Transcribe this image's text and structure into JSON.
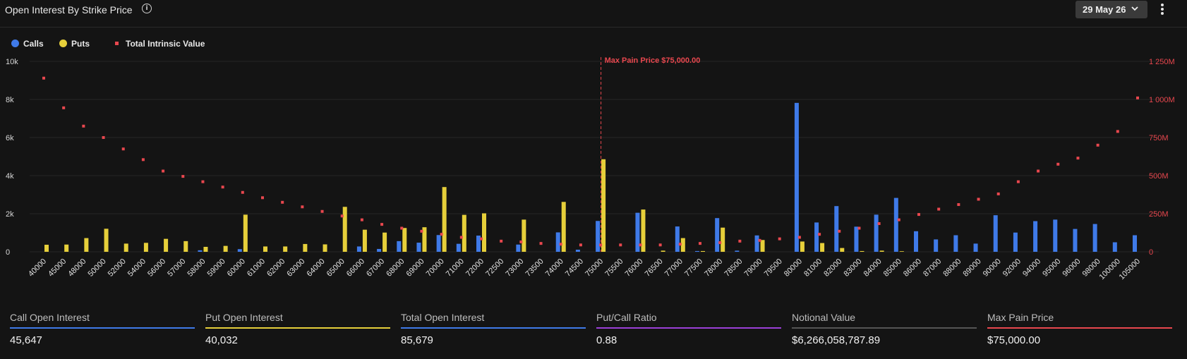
{
  "header": {
    "title": "Open Interest By Strike Price",
    "info_icon": "info-icon",
    "date_selector": {
      "selected": "29 May 26",
      "icon": "chevron-down-icon"
    },
    "menu_icon": "kebab-menu-icon"
  },
  "legend": [
    {
      "label": "Calls",
      "color": "#3f7ae8",
      "marker": "circle"
    },
    {
      "label": "Puts",
      "color": "#e6cf3a",
      "marker": "circle"
    },
    {
      "label": "Total Intrinsic Value",
      "color": "#e8474e",
      "marker": "square"
    }
  ],
  "chart_data": {
    "type": "bar",
    "categories": [
      "40000",
      "45000",
      "48000",
      "50000",
      "52000",
      "54000",
      "56000",
      "57000",
      "58000",
      "59000",
      "60000",
      "61000",
      "62000",
      "63000",
      "64000",
      "65000",
      "66000",
      "67000",
      "68000",
      "69000",
      "70000",
      "71000",
      "72000",
      "72500",
      "73000",
      "73500",
      "74000",
      "74500",
      "75000",
      "75500",
      "76000",
      "76500",
      "77000",
      "77500",
      "78000",
      "78500",
      "79000",
      "79500",
      "80000",
      "81000",
      "82000",
      "83000",
      "84000",
      "85000",
      "86000",
      "87000",
      "88000",
      "89000",
      "90000",
      "92000",
      "94000",
      "95000",
      "96000",
      "98000",
      "100000",
      "105000"
    ],
    "series": [
      {
        "name": "Calls",
        "axis": "left",
        "color": "#3f7ae8",
        "values": [
          0,
          0,
          0,
          0,
          0,
          0,
          0,
          0,
          80,
          0,
          140,
          0,
          0,
          0,
          0,
          0,
          280,
          150,
          560,
          480,
          880,
          420,
          850,
          0,
          380,
          0,
          1020,
          110,
          1620,
          0,
          2050,
          0,
          1330,
          40,
          1770,
          60,
          860,
          0,
          7820,
          1540,
          2400,
          1320,
          1950,
          2830,
          1080,
          650,
          870,
          430,
          1920,
          1010,
          1610,
          1690,
          1200,
          1460,
          500,
          870
        ]
      },
      {
        "name": "Puts",
        "axis": "left",
        "color": "#e6cf3a",
        "values": [
          370,
          380,
          720,
          1210,
          430,
          470,
          680,
          560,
          260,
          310,
          1950,
          280,
          280,
          410,
          390,
          2360,
          1160,
          1010,
          1250,
          1290,
          3400,
          1940,
          2020,
          0,
          1690,
          0,
          2620,
          0,
          4860,
          0,
          2220,
          60,
          720,
          40,
          1270,
          0,
          620,
          0,
          540,
          460,
          200,
          40,
          60,
          30,
          0,
          0,
          0,
          0,
          0,
          0,
          0,
          0,
          0,
          0,
          0,
          0
        ]
      },
      {
        "name": "Total Intrinsic Value",
        "axis": "right",
        "color": "#e8474e",
        "type": "scatter",
        "values": [
          1140,
          945,
          825,
          750,
          675,
          605,
          530,
          495,
          460,
          425,
          390,
          355,
          325,
          295,
          265,
          235,
          210,
          180,
          155,
          135,
          115,
          95,
          85,
          70,
          65,
          55,
          50,
          45,
          45,
          45,
          45,
          45,
          50,
          55,
          60,
          70,
          75,
          85,
          95,
          115,
          135,
          155,
          185,
          210,
          245,
          280,
          310,
          345,
          380,
          460,
          530,
          575,
          615,
          700,
          790,
          1010
        ]
      }
    ],
    "y_left": {
      "ticks": [
        "0",
        "2k",
        "4k",
        "6k",
        "8k",
        "10k"
      ],
      "tick_values": [
        0,
        2000,
        4000,
        6000,
        8000,
        10000
      ],
      "range": [
        0,
        10000
      ]
    },
    "y_right": {
      "ticks": [
        "0",
        "250M",
        "500M",
        "750M",
        "1 000M",
        "1 250M"
      ],
      "tick_values": [
        0,
        250,
        500,
        750,
        1000,
        1250
      ],
      "unit": "M",
      "range": [
        0,
        1250
      ]
    },
    "annotation": {
      "label": "Max Pain Price $75,000.00",
      "category": "75000",
      "color": "#e8474e"
    },
    "grid": true,
    "legend_position": "top-left"
  },
  "stats": [
    {
      "label": "Call Open Interest",
      "value": "45,647",
      "color": "#3f7ae8"
    },
    {
      "label": "Put Open Interest",
      "value": "40,032",
      "color": "#e6cf3a"
    },
    {
      "label": "Total Open Interest",
      "value": "85,679",
      "color": "#3f7ae8"
    },
    {
      "label": "Put/Call Ratio",
      "value": "0.88",
      "color": "#9b3fd8"
    },
    {
      "label": "Notional Value",
      "value": "$6,266,058,787.89",
      "color": "#555555"
    },
    {
      "label": "Max Pain Price",
      "value": "$75,000.00",
      "color": "#e8474e"
    }
  ]
}
